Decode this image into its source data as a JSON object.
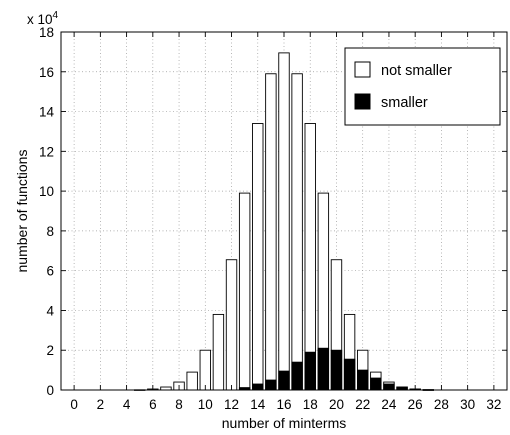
{
  "chart_data": {
    "type": "bar",
    "bar_mode": "overlay",
    "xlabel": "number of minterms",
    "ylabel": "number of functions",
    "y_multiplier_label": {
      "base": "x 10",
      "exponent": "4"
    },
    "xlim": [
      -1,
      33
    ],
    "ylim": [
      0,
      18
    ],
    "x_ticks": [
      "0",
      "2",
      "4",
      "6",
      "8",
      "10",
      "12",
      "14",
      "16",
      "18",
      "20",
      "22",
      "24",
      "26",
      "28",
      "30",
      "32"
    ],
    "y_ticks": [
      "0",
      "2",
      "4",
      "6",
      "8",
      "10",
      "12",
      "14",
      "16",
      "18"
    ],
    "grid": true,
    "legend_position": "top-right",
    "x": [
      0,
      1,
      2,
      3,
      4,
      5,
      6,
      7,
      8,
      9,
      10,
      11,
      12,
      13,
      14,
      15,
      16,
      17,
      18,
      19,
      20,
      21,
      22,
      23,
      24,
      25,
      26,
      27,
      28,
      29,
      30,
      31,
      32
    ],
    "series": [
      {
        "name": "not smaller",
        "color": "#ffffff",
        "values": [
          0,
          0,
          0,
          0,
          0,
          0.01,
          0.05,
          0.15,
          0.4,
          0.9,
          2.0,
          3.8,
          6.55,
          9.9,
          13.4,
          15.9,
          16.95,
          15.9,
          13.4,
          9.9,
          6.55,
          3.8,
          2.0,
          0.9,
          0.4,
          0.15,
          0.05,
          0.01,
          0,
          0,
          0,
          0,
          0
        ]
      },
      {
        "name": "smaller",
        "color": "#000000",
        "values": [
          0,
          0,
          0,
          0,
          0,
          0,
          0,
          0,
          0,
          0,
          0,
          0,
          0,
          0.12,
          0.3,
          0.5,
          0.95,
          1.4,
          1.9,
          2.1,
          2.0,
          1.55,
          1.0,
          0.6,
          0.3,
          0.15,
          0.05,
          0.02,
          0,
          0,
          0,
          0,
          0
        ]
      }
    ]
  }
}
